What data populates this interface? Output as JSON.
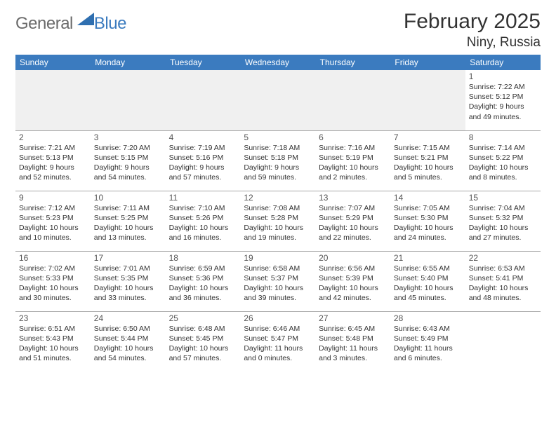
{
  "logo": {
    "part1": "General",
    "part2": "Blue",
    "triangle_color": "#2f6fb0"
  },
  "title": "February 2025",
  "location": "Niny, Russia",
  "colors": {
    "header_bg": "#3b7bbf",
    "header_text": "#ffffff",
    "grid_line": "#a8a8a8",
    "empty_bg": "#f0f0f0",
    "text": "#333333"
  },
  "weekdays": [
    "Sunday",
    "Monday",
    "Tuesday",
    "Wednesday",
    "Thursday",
    "Friday",
    "Saturday"
  ],
  "weeks": [
    [
      null,
      null,
      null,
      null,
      null,
      null,
      {
        "n": "1",
        "sunrise": "7:22 AM",
        "sunset": "5:12 PM",
        "daylight": "9 hours and 49 minutes."
      }
    ],
    [
      {
        "n": "2",
        "sunrise": "7:21 AM",
        "sunset": "5:13 PM",
        "daylight": "9 hours and 52 minutes."
      },
      {
        "n": "3",
        "sunrise": "7:20 AM",
        "sunset": "5:15 PM",
        "daylight": "9 hours and 54 minutes."
      },
      {
        "n": "4",
        "sunrise": "7:19 AM",
        "sunset": "5:16 PM",
        "daylight": "9 hours and 57 minutes."
      },
      {
        "n": "5",
        "sunrise": "7:18 AM",
        "sunset": "5:18 PM",
        "daylight": "9 hours and 59 minutes."
      },
      {
        "n": "6",
        "sunrise": "7:16 AM",
        "sunset": "5:19 PM",
        "daylight": "10 hours and 2 minutes."
      },
      {
        "n": "7",
        "sunrise": "7:15 AM",
        "sunset": "5:21 PM",
        "daylight": "10 hours and 5 minutes."
      },
      {
        "n": "8",
        "sunrise": "7:14 AM",
        "sunset": "5:22 PM",
        "daylight": "10 hours and 8 minutes."
      }
    ],
    [
      {
        "n": "9",
        "sunrise": "7:12 AM",
        "sunset": "5:23 PM",
        "daylight": "10 hours and 10 minutes."
      },
      {
        "n": "10",
        "sunrise": "7:11 AM",
        "sunset": "5:25 PM",
        "daylight": "10 hours and 13 minutes."
      },
      {
        "n": "11",
        "sunrise": "7:10 AM",
        "sunset": "5:26 PM",
        "daylight": "10 hours and 16 minutes."
      },
      {
        "n": "12",
        "sunrise": "7:08 AM",
        "sunset": "5:28 PM",
        "daylight": "10 hours and 19 minutes."
      },
      {
        "n": "13",
        "sunrise": "7:07 AM",
        "sunset": "5:29 PM",
        "daylight": "10 hours and 22 minutes."
      },
      {
        "n": "14",
        "sunrise": "7:05 AM",
        "sunset": "5:30 PM",
        "daylight": "10 hours and 24 minutes."
      },
      {
        "n": "15",
        "sunrise": "7:04 AM",
        "sunset": "5:32 PM",
        "daylight": "10 hours and 27 minutes."
      }
    ],
    [
      {
        "n": "16",
        "sunrise": "7:02 AM",
        "sunset": "5:33 PM",
        "daylight": "10 hours and 30 minutes."
      },
      {
        "n": "17",
        "sunrise": "7:01 AM",
        "sunset": "5:35 PM",
        "daylight": "10 hours and 33 minutes."
      },
      {
        "n": "18",
        "sunrise": "6:59 AM",
        "sunset": "5:36 PM",
        "daylight": "10 hours and 36 minutes."
      },
      {
        "n": "19",
        "sunrise": "6:58 AM",
        "sunset": "5:37 PM",
        "daylight": "10 hours and 39 minutes."
      },
      {
        "n": "20",
        "sunrise": "6:56 AM",
        "sunset": "5:39 PM",
        "daylight": "10 hours and 42 minutes."
      },
      {
        "n": "21",
        "sunrise": "6:55 AM",
        "sunset": "5:40 PM",
        "daylight": "10 hours and 45 minutes."
      },
      {
        "n": "22",
        "sunrise": "6:53 AM",
        "sunset": "5:41 PM",
        "daylight": "10 hours and 48 minutes."
      }
    ],
    [
      {
        "n": "23",
        "sunrise": "6:51 AM",
        "sunset": "5:43 PM",
        "daylight": "10 hours and 51 minutes."
      },
      {
        "n": "24",
        "sunrise": "6:50 AM",
        "sunset": "5:44 PM",
        "daylight": "10 hours and 54 minutes."
      },
      {
        "n": "25",
        "sunrise": "6:48 AM",
        "sunset": "5:45 PM",
        "daylight": "10 hours and 57 minutes."
      },
      {
        "n": "26",
        "sunrise": "6:46 AM",
        "sunset": "5:47 PM",
        "daylight": "11 hours and 0 minutes."
      },
      {
        "n": "27",
        "sunrise": "6:45 AM",
        "sunset": "5:48 PM",
        "daylight": "11 hours and 3 minutes."
      },
      {
        "n": "28",
        "sunrise": "6:43 AM",
        "sunset": "5:49 PM",
        "daylight": "11 hours and 6 minutes."
      },
      null
    ]
  ]
}
